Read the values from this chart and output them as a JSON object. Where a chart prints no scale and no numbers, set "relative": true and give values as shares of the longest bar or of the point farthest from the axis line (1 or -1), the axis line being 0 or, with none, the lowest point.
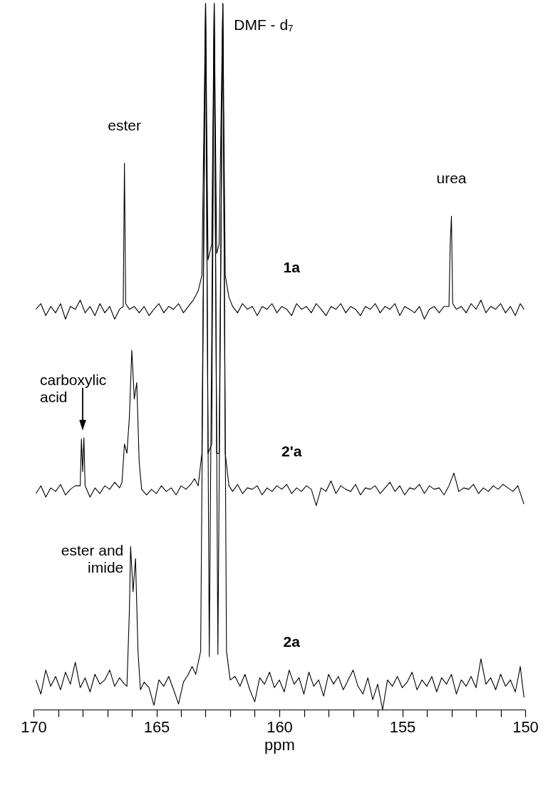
{
  "chart_data": {
    "type": "line",
    "relative": true,
    "xlim": [
      170,
      150
    ],
    "xlabel": "ppm",
    "line_style": "solid",
    "marker": "none",
    "xticks": [
      170,
      {
        "value": 169,
        "label": null
      },
      {
        "value": 168,
        "label": null
      },
      {
        "value": 167,
        "label": null
      },
      {
        "value": 166,
        "label": null
      },
      165,
      {
        "value": 164,
        "label": null
      },
      {
        "value": 163,
        "label": null
      },
      {
        "value": 162,
        "label": null
      },
      {
        "value": 161,
        "label": null
      },
      160,
      {
        "value": 159,
        "label": null
      },
      {
        "value": 158,
        "label": null
      },
      {
        "value": 157,
        "label": null
      },
      {
        "value": 156,
        "label": null
      },
      155,
      {
        "value": 154,
        "label": null
      },
      {
        "value": 153,
        "label": null
      },
      {
        "value": 152,
        "label": null
      },
      {
        "value": 151,
        "label": null
      },
      150
    ],
    "series": [
      {
        "name": "1a",
        "color": "#000000",
        "x": [
          169.9,
          169.7,
          169.5,
          169.3,
          169.1,
          168.9,
          168.7,
          168.5,
          168.3,
          168.1,
          167.9,
          167.7,
          167.5,
          167.3,
          167.1,
          166.9,
          166.7,
          166.5,
          166.35,
          166.3,
          166.25,
          166.1,
          165.9,
          165.7,
          165.5,
          165.3,
          165.1,
          164.9,
          164.7,
          164.5,
          164.3,
          164.1,
          163.9,
          163.7,
          163.5,
          163.3,
          163.15,
          163.0,
          162.9,
          162.75,
          162.65,
          162.55,
          162.45,
          162.3,
          162.2,
          162.05,
          161.9,
          161.7,
          161.5,
          161.3,
          161.1,
          160.9,
          160.7,
          160.5,
          160.3,
          160.1,
          159.9,
          159.7,
          159.5,
          159.3,
          159.1,
          158.9,
          158.7,
          158.5,
          158.3,
          158.1,
          157.9,
          157.7,
          157.5,
          157.3,
          157.1,
          156.9,
          156.7,
          156.5,
          156.3,
          156.1,
          155.9,
          155.7,
          155.5,
          155.3,
          155.1,
          154.9,
          154.7,
          154.5,
          154.3,
          154.1,
          153.9,
          153.7,
          153.5,
          153.3,
          153.1,
          153.05,
          153.0,
          152.95,
          152.8,
          152.6,
          152.4,
          152.2,
          152.0,
          151.8,
          151.6,
          151.4,
          151.2,
          151.0,
          150.8,
          150.6,
          150.4,
          150.2,
          150.05
        ],
        "values": [
          0.567,
          0.575,
          0.558,
          0.571,
          0.562,
          0.575,
          0.553,
          0.571,
          0.567,
          0.58,
          0.562,
          0.571,
          0.558,
          0.575,
          0.562,
          0.571,
          0.553,
          0.567,
          0.571,
          0.774,
          0.575,
          0.567,
          0.571,
          0.562,
          0.571,
          0.558,
          0.567,
          0.575,
          0.562,
          0.571,
          0.567,
          0.575,
          0.562,
          0.571,
          0.58,
          0.593,
          0.615,
          1,
          0.637,
          0.659,
          1,
          0.646,
          0.659,
          1,
          0.615,
          0.584,
          0.571,
          0.562,
          0.575,
          0.567,
          0.571,
          0.558,
          0.571,
          0.567,
          0.575,
          0.562,
          0.571,
          0.567,
          0.558,
          0.575,
          0.567,
          0.571,
          0.562,
          0.575,
          0.567,
          0.558,
          0.571,
          0.567,
          0.575,
          0.562,
          0.571,
          0.567,
          0.558,
          0.571,
          0.567,
          0.575,
          0.562,
          0.571,
          0.567,
          0.575,
          0.558,
          0.571,
          0.567,
          0.562,
          0.571,
          0.553,
          0.567,
          0.571,
          0.562,
          0.571,
          0.571,
          0.659,
          0.699,
          0.575,
          0.567,
          0.571,
          0.562,
          0.575,
          0.567,
          0.58,
          0.562,
          0.571,
          0.567,
          0.575,
          0.562,
          0.571,
          0.558,
          0.575,
          0.567
        ]
      },
      {
        "name": "2'a",
        "color": "#000000",
        "x": [
          169.9,
          169.7,
          169.5,
          169.3,
          169.1,
          168.9,
          168.7,
          168.5,
          168.3,
          168.1,
          168.05,
          168.0,
          167.95,
          167.9,
          167.7,
          167.5,
          167.3,
          167.1,
          166.9,
          166.7,
          166.5,
          166.4,
          166.3,
          166.2,
          166.1,
          166.0,
          165.9,
          165.8,
          165.7,
          165.6,
          165.4,
          165.2,
          165.0,
          164.8,
          164.6,
          164.4,
          164.2,
          164.0,
          163.8,
          163.6,
          163.45,
          163.3,
          163.15,
          163.0,
          162.9,
          162.75,
          162.65,
          162.55,
          162.45,
          162.3,
          162.2,
          162.05,
          161.9,
          161.7,
          161.5,
          161.3,
          161.1,
          160.9,
          160.7,
          160.5,
          160.3,
          160.1,
          159.9,
          159.7,
          159.5,
          159.3,
          159.1,
          158.9,
          158.7,
          158.5,
          158.3,
          158.1,
          157.9,
          157.7,
          157.5,
          157.3,
          157.1,
          156.9,
          156.7,
          156.5,
          156.3,
          156.1,
          155.9,
          155.7,
          155.5,
          155.3,
          155.1,
          154.9,
          154.7,
          154.5,
          154.3,
          154.1,
          153.9,
          153.7,
          153.5,
          153.3,
          153.1,
          152.9,
          152.7,
          152.5,
          152.3,
          152.1,
          151.9,
          151.7,
          151.5,
          151.3,
          151.1,
          150.9,
          150.7,
          150.5,
          150.3,
          150.05
        ],
        "values": [
          0.306,
          0.317,
          0.301,
          0.314,
          0.309,
          0.319,
          0.304,
          0.312,
          0.317,
          0.317,
          0.383,
          0.337,
          0.385,
          0.317,
          0.301,
          0.314,
          0.306,
          0.317,
          0.312,
          0.322,
          0.314,
          0.322,
          0.376,
          0.363,
          0.414,
          0.509,
          0.44,
          0.463,
          0.35,
          0.312,
          0.304,
          0.312,
          0.306,
          0.317,
          0.309,
          0.314,
          0.304,
          0.317,
          0.312,
          0.319,
          0.327,
          0.317,
          0.363,
          1,
          0.363,
          0.376,
          1,
          0.363,
          0.363,
          1,
          0.363,
          0.317,
          0.309,
          0.319,
          0.306,
          0.314,
          0.312,
          0.317,
          0.304,
          0.314,
          0.309,
          0.317,
          0.312,
          0.319,
          0.306,
          0.314,
          0.309,
          0.317,
          0.312,
          0.289,
          0.314,
          0.309,
          0.324,
          0.306,
          0.317,
          0.312,
          0.309,
          0.319,
          0.304,
          0.314,
          0.312,
          0.317,
          0.306,
          0.314,
          0.322,
          0.309,
          0.317,
          0.304,
          0.314,
          0.312,
          0.319,
          0.306,
          0.317,
          0.312,
          0.314,
          0.304,
          0.317,
          0.335,
          0.309,
          0.314,
          0.312,
          0.319,
          0.306,
          0.314,
          0.309,
          0.317,
          0.312,
          0.319,
          0.314,
          0.309,
          0.317,
          0.291
        ]
      },
      {
        "name": "2a",
        "color": "#000000",
        "x": [
          169.9,
          169.7,
          169.5,
          169.3,
          169.1,
          168.9,
          168.7,
          168.5,
          168.3,
          168.1,
          167.9,
          167.7,
          167.5,
          167.3,
          167.1,
          166.9,
          166.7,
          166.5,
          166.3,
          166.2,
          166.1,
          166.05,
          165.95,
          165.85,
          165.75,
          165.65,
          165.5,
          165.3,
          165.1,
          164.9,
          164.7,
          164.5,
          164.3,
          164.1,
          163.9,
          163.7,
          163.55,
          163.4,
          163.2,
          163.0,
          162.85,
          162.65,
          162.5,
          162.3,
          162.15,
          162.0,
          161.8,
          161.6,
          161.4,
          161.2,
          161.0,
          160.8,
          160.6,
          160.4,
          160.2,
          160.0,
          159.8,
          159.6,
          159.4,
          159.2,
          159.0,
          158.8,
          158.6,
          158.4,
          158.2,
          158.0,
          157.8,
          157.6,
          157.4,
          157.2,
          157.0,
          156.8,
          156.6,
          156.4,
          156.2,
          156.0,
          155.8,
          155.6,
          155.4,
          155.2,
          155.0,
          154.8,
          154.6,
          154.4,
          154.2,
          154.0,
          153.8,
          153.6,
          153.4,
          153.2,
          153.0,
          152.8,
          152.6,
          152.4,
          152.2,
          152.0,
          151.8,
          151.6,
          151.4,
          151.2,
          151.0,
          150.8,
          150.6,
          150.4,
          150.2,
          150.05
        ],
        "values": [
          0.042,
          0.022,
          0.056,
          0.033,
          0.047,
          0.028,
          0.053,
          0.036,
          0.067,
          0.031,
          0.045,
          0.025,
          0.05,
          0.036,
          0.042,
          0.056,
          0.033,
          0.045,
          0.036,
          0.033,
          0.139,
          0.231,
          0.167,
          0.214,
          0.083,
          0.028,
          0.039,
          0.031,
          0.006,
          0.042,
          0.033,
          0.047,
          0.028,
          0.008,
          0.039,
          0.05,
          0.061,
          0.05,
          0.083,
          1,
          0.075,
          1,
          0.078,
          1,
          0.083,
          0.042,
          0.047,
          0.033,
          0.05,
          0.028,
          0.011,
          0.045,
          0.036,
          0.053,
          0.031,
          0.042,
          0.025,
          0.056,
          0.036,
          0.045,
          0.022,
          0.053,
          0.033,
          0.042,
          0.019,
          0.05,
          0.036,
          0.047,
          0.028,
          0.042,
          0.056,
          0.033,
          0.022,
          0.045,
          0.014,
          0.036,
          0,
          0.042,
          0.033,
          0.047,
          0.031,
          0.039,
          0.053,
          0.028,
          0.042,
          0.033,
          0.047,
          0.025,
          0.045,
          0.036,
          0.05,
          0.022,
          0.042,
          0.033,
          0.047,
          0.031,
          0.072,
          0.036,
          0.045,
          0.028,
          0.05,
          0.033,
          0.042,
          0.025,
          0.061,
          0.017
        ]
      }
    ],
    "annotations": [
      {
        "text": "ester",
        "x": 166.3,
        "y": 0.774
      },
      {
        "text": "urea",
        "x": 153.0,
        "y": 0.699
      },
      {
        "text": "DMF - d₇",
        "x": 162.6,
        "y": 1
      },
      {
        "text": "carboxylic acid",
        "x": 168.0,
        "y": 0.385
      },
      {
        "text": "ester and imide",
        "x": 166.05,
        "y": 0.231
      }
    ]
  }
}
